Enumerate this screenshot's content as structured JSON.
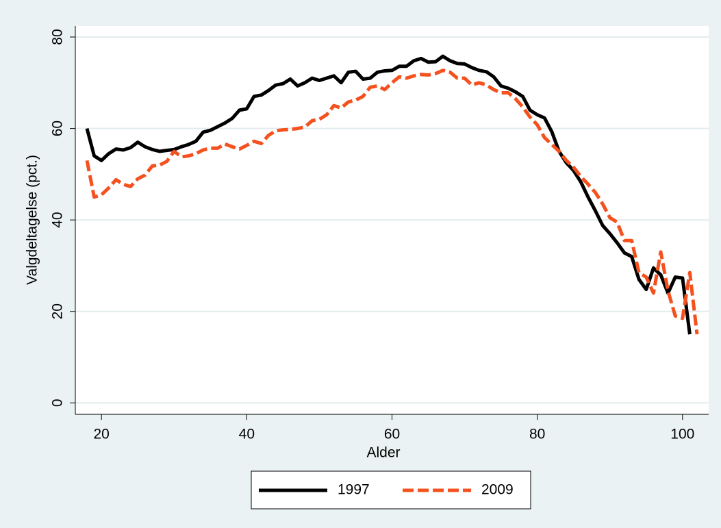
{
  "chart_data": {
    "type": "line",
    "xlabel": "Alder",
    "ylabel": "Valgdeltagelse (pct.)",
    "x": [
      18,
      19,
      20,
      21,
      22,
      23,
      24,
      25,
      26,
      27,
      28,
      29,
      30,
      31,
      32,
      33,
      34,
      35,
      36,
      37,
      38,
      39,
      40,
      41,
      42,
      43,
      44,
      45,
      46,
      47,
      48,
      49,
      50,
      51,
      52,
      53,
      54,
      55,
      56,
      57,
      58,
      59,
      60,
      61,
      62,
      63,
      64,
      65,
      66,
      67,
      68,
      69,
      70,
      71,
      72,
      73,
      74,
      75,
      76,
      77,
      78,
      79,
      80,
      81,
      82,
      83,
      84,
      85,
      86,
      87,
      88,
      89,
      90,
      91,
      92,
      93,
      94,
      95,
      96,
      97,
      98,
      99,
      100,
      101,
      102
    ],
    "series": [
      {
        "name": "1997",
        "color": "#000000",
        "dash": false,
        "values": [
          60,
          54,
          53,
          54.5,
          55.5,
          55.3,
          55.8,
          57,
          56,
          55.4,
          55,
          55.2,
          55.4,
          56,
          56.5,
          57.2,
          59.2,
          59.6,
          60.4,
          61.2,
          62.2,
          64,
          64.3,
          67,
          67.3,
          68.3,
          69.5,
          69.8,
          70.8,
          69.3,
          70,
          71,
          70.5,
          71,
          71.5,
          70,
          72.3,
          72.5,
          70.8,
          71,
          72.3,
          72.6,
          72.7,
          73.6,
          73.6,
          74.8,
          75.3,
          74.5,
          74.6,
          75.8,
          74.8,
          74.2,
          74.1,
          73.3,
          72.7,
          72.4,
          71.3,
          69.3,
          68.8,
          68,
          67,
          64,
          63,
          62.3,
          59.3,
          55,
          52.5,
          50.8,
          48.3,
          45,
          42,
          38.8,
          37,
          35,
          32.8,
          32,
          27,
          24.8,
          29.5,
          28,
          24,
          27.5,
          27.3,
          15,
          null
        ]
      },
      {
        "name": "2009",
        "color": "#f4511e",
        "dash": true,
        "values": [
          53,
          45,
          45.5,
          47,
          48.8,
          47.8,
          47.3,
          49,
          49.8,
          51.8,
          52,
          52.8,
          55,
          53.8,
          54,
          54.5,
          55.3,
          55.7,
          55.7,
          56.6,
          56,
          55.5,
          56.3,
          57.2,
          56.7,
          58.5,
          59.5,
          59.7,
          59.8,
          60,
          60.3,
          61.7,
          62,
          63,
          65,
          64.5,
          65.8,
          66.2,
          67,
          69,
          69.3,
          68.5,
          70,
          71.3,
          71,
          71.5,
          71.8,
          71.7,
          72,
          72.7,
          72.3,
          71,
          71,
          69.5,
          70,
          69.5,
          68.5,
          67.8,
          67.8,
          66.5,
          64.7,
          62.5,
          60.8,
          58,
          56.5,
          55,
          53,
          51.5,
          49.5,
          47.8,
          46,
          43.5,
          40.5,
          39.5,
          35.5,
          35.5,
          28.5,
          27.5,
          24,
          33,
          24.5,
          19,
          18.5,
          28.5,
          15
        ]
      }
    ],
    "xlim": [
      16.4,
      103.6
    ],
    "xticks": [
      20,
      40,
      60,
      80,
      100
    ],
    "ylim": [
      -2.5,
      82.4
    ],
    "yticks": [
      0,
      20,
      40,
      60,
      80
    ],
    "grid": true,
    "legend": "bottom"
  }
}
